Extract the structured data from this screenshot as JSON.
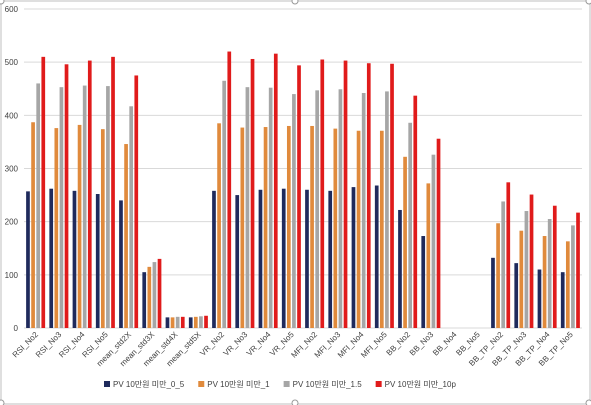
{
  "colors": {
    "series": [
      "#1f2a5c",
      "#e08a3c",
      "#a6a6a6",
      "#e01b1b"
    ],
    "grid": "#d9d9d9",
    "frame": "#bfbfbf",
    "handle": "#9a9a9a"
  },
  "chart_data": {
    "type": "bar",
    "ylim": [
      0,
      600
    ],
    "yticks": [
      0,
      100,
      200,
      300,
      400,
      500,
      600
    ],
    "grid": true,
    "legend_position": "bottom",
    "categories": [
      "RSI_No2",
      "RSI_No3",
      "RSI_No4",
      "RSI_No5",
      "mean_std2X",
      "mean_std3X",
      "mean_std4X",
      "mean_std5X",
      "VR_No2",
      "VR_No3",
      "VR_No4",
      "VR_No5",
      "MFI_No2",
      "MFI_No3",
      "MFI_No4",
      "MFI_No5",
      "BB_No2",
      "BB_No3",
      "BB_No4",
      "BB_No5",
      "BB_TP_No2",
      "BB_TP_No3",
      "BB_TP_No4",
      "BB_TP_No5"
    ],
    "series": [
      {
        "name": "PV 10만원 미만_0_5",
        "values": [
          257,
          262,
          258,
          252,
          240,
          105,
          20,
          20,
          258,
          250,
          260,
          262,
          260,
          258,
          265,
          268,
          222,
          173,
          0,
          0,
          132,
          122,
          110,
          105
        ]
      },
      {
        "name": "PV 10만원 미만_1",
        "values": [
          387,
          376,
          382,
          374,
          346,
          115,
          20,
          21,
          385,
          377,
          378,
          380,
          380,
          375,
          371,
          371,
          322,
          272,
          0,
          0,
          197,
          183,
          173,
          163
        ]
      },
      {
        "name": "PV 10만원 미만_1.5",
        "values": [
          460,
          453,
          456,
          455,
          417,
          124,
          21,
          22,
          465,
          453,
          452,
          440,
          447,
          449,
          442,
          445,
          386,
          326,
          0,
          0,
          238,
          220,
          205,
          193
        ]
      },
      {
        "name": "PV 10만원 미만_10p",
        "values": [
          510,
          496,
          503,
          510,
          475,
          130,
          21,
          23,
          520,
          506,
          516,
          494,
          505,
          503,
          498,
          497,
          437,
          356,
          0,
          0,
          274,
          251,
          230,
          217
        ]
      }
    ]
  }
}
